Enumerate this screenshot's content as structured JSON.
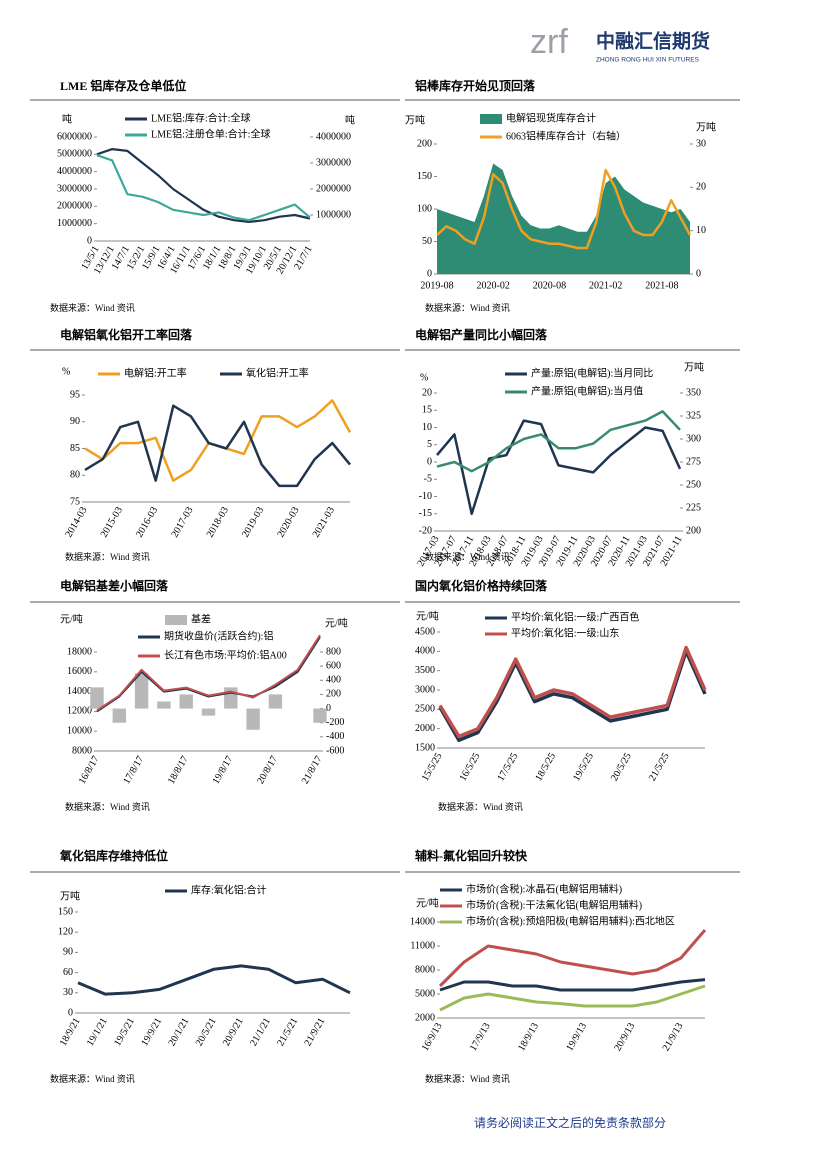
{
  "header": {
    "logo": "zrf",
    "name": "中融汇信期货",
    "name_en": "ZHONG RONG HUI XIN FUTURES"
  },
  "footer": "请务必阅读正文之后的免责条款部分",
  "chart_data": [
    {
      "type": "line",
      "title": "LME 铝库存及仓单低位",
      "source": "数据来源：Wind 资讯",
      "ylabel": "吨",
      "y2label": "吨",
      "categories": [
        "13/5/1",
        "13/12/1",
        "14/7/1",
        "15/2/1",
        "15/9/1",
        "16/4/1",
        "16/11/1",
        "17/6/1",
        "18/1/1",
        "18/8/1",
        "19/3/1",
        "19/10/1",
        "20/5/1",
        "20/12/1",
        "21/7/1"
      ],
      "series": [
        {
          "name": "LME铝:库存:合计:全球",
          "color": "#1f3550",
          "values": [
            5000000,
            5300000,
            5200000,
            4500000,
            3800000,
            3000000,
            2400000,
            1800000,
            1400000,
            1200000,
            1100000,
            1200000,
            1400000,
            1500000,
            1300000
          ]
        },
        {
          "name": "LME铝:注册仓单:合计:全球",
          "color": "#3ea89a",
          "axis": "y2",
          "values": [
            3300000,
            3100000,
            1800000,
            1700000,
            1500000,
            1200000,
            1100000,
            1000000,
            1100000,
            900000,
            800000,
            1000000,
            1200000,
            1400000,
            900000
          ]
        }
      ],
      "ylim": [
        0,
        6000000
      ],
      "yticks": [
        0,
        1000000,
        2000000,
        3000000,
        4000000,
        5000000,
        6000000
      ],
      "y2lim": [
        0,
        4000000
      ],
      "y2ticks": [
        1000000,
        2000000,
        3000000,
        4000000
      ]
    },
    {
      "type": "line",
      "title": "铝棒库存开始见顶回落",
      "source": "数据来源：Wind 资讯",
      "ylabel": "万吨",
      "y2label": "万吨",
      "categories": [
        "2019-08",
        null,
        null,
        null,
        null,
        null,
        "2020-02",
        null,
        null,
        null,
        null,
        null,
        "2020-08",
        null,
        null,
        null,
        null,
        null,
        "2021-02",
        null,
        null,
        null,
        null,
        null,
        "2021-08",
        null,
        null,
        null
      ],
      "series": [
        {
          "name": "电解铝现货库存合计",
          "type": "area",
          "color": "#2e8b74",
          "values": [
            100,
            95,
            90,
            85,
            80,
            120,
            170,
            160,
            120,
            90,
            75,
            70,
            70,
            75,
            70,
            65,
            65,
            90,
            140,
            150,
            130,
            120,
            110,
            105,
            100,
            95,
            100,
            80
          ]
        },
        {
          "name": "6063铝棒库存合计（右轴）",
          "color": "#f0a020",
          "axis": "y2",
          "values": [
            9,
            11,
            10,
            8,
            7,
            13,
            23,
            21,
            15,
            10,
            8,
            7.5,
            7,
            7,
            6.5,
            6,
            6,
            12,
            24,
            20,
            14,
            10,
            9,
            9,
            12,
            17,
            13,
            9
          ]
        }
      ],
      "ylim": [
        0,
        200
      ],
      "yticks": [
        0,
        50,
        100,
        150,
        200
      ],
      "y2lim": [
        0,
        30
      ],
      "y2ticks": [
        0,
        10,
        20,
        30
      ]
    },
    {
      "type": "line",
      "title": "电解铝氧化铝开工率回落",
      "source": "数据来源：Wind 资讯",
      "ylabel": "%",
      "categories": [
        "2014-03",
        null,
        "2015-03",
        null,
        "2016-03",
        null,
        "2017-03",
        null,
        "2018-03",
        null,
        "2019-03",
        null,
        "2020-03",
        null,
        "2021-03",
        null
      ],
      "series": [
        {
          "name": "电解铝:开工率",
          "color": "#f0a020",
          "values": [
            85,
            83,
            86,
            86,
            87,
            79,
            81,
            86,
            85,
            84,
            91,
            91,
            89,
            91,
            94,
            88
          ]
        },
        {
          "name": "氧化铝:开工率",
          "color": "#1f3550",
          "values": [
            81,
            83,
            89,
            90,
            79,
            93,
            91,
            86,
            85,
            90,
            82,
            78,
            78,
            83,
            86,
            82
          ]
        }
      ],
      "ylim": [
        75,
        95
      ],
      "yticks": [
        75,
        80,
        85,
        90,
        95
      ]
    },
    {
      "type": "line",
      "title": "电解铝产量同比小幅回落",
      "source": "数据来源：Wind 资讯",
      "ylabel": "%",
      "y2label": "万吨",
      "categories": [
        "2017-03",
        "2017-07",
        "2017-11",
        "2018-03",
        "2018-07",
        "2018-11",
        "2019-03",
        "2019-07",
        "2019-11",
        "2020-03",
        "2020-07",
        "2020-11",
        "2021-03",
        "2021-07",
        "2021-11"
      ],
      "series": [
        {
          "name": "产量:原铝(电解铝):当月同比",
          "color": "#1f3550",
          "values": [
            2,
            8,
            -15,
            1,
            2,
            12,
            11,
            -1,
            -2,
            -3,
            2,
            6,
            10,
            9,
            -2
          ]
        },
        {
          "name": "产量:原铝(电解铝):当月值",
          "color": "#3a8a6e",
          "axis": "y2",
          "values": [
            270,
            275,
            265,
            275,
            290,
            300,
            305,
            290,
            290,
            295,
            310,
            315,
            320,
            330,
            310
          ]
        }
      ],
      "ylim": [
        -20,
        20
      ],
      "yticks": [
        -20,
        -15,
        -10,
        -5,
        0,
        5,
        10,
        15,
        20
      ],
      "y2lim": [
        200,
        350
      ],
      "y2ticks": [
        200,
        225,
        250,
        275,
        300,
        325,
        350
      ]
    },
    {
      "type": "line",
      "title": "电解铝基差小幅回落",
      "source": "数据来源：Wind 资讯",
      "ylabel": "元/吨",
      "y2label": "元/吨",
      "categories": [
        "16/8/17",
        null,
        "17/8/17",
        null,
        "18/8/17",
        null,
        "19/8/17",
        null,
        "20/8/17",
        null,
        "21/8/17"
      ],
      "series": [
        {
          "name": "基差",
          "type": "bar",
          "color": "#b8b8b8",
          "axis": "y2",
          "values": [
            300,
            -200,
            500,
            100,
            200,
            -100,
            300,
            -300,
            200,
            0,
            -200
          ]
        },
        {
          "name": "期货收盘价(活跃合约):铝",
          "color": "#1f3550",
          "values": [
            12000,
            13500,
            16000,
            14000,
            14300,
            13500,
            13900,
            13500,
            14500,
            16000,
            19500
          ]
        },
        {
          "name": "长江有色市场:平均价:铝A00",
          "color": "#c0504d",
          "values": [
            12100,
            13600,
            16200,
            14100,
            14400,
            13600,
            14000,
            13400,
            14700,
            16200,
            19700
          ]
        }
      ],
      "ylim": [
        8000,
        18000
      ],
      "yticks": [
        8000,
        10000,
        12000,
        14000,
        16000,
        18000
      ],
      "y2lim": [
        -600,
        800
      ],
      "y2ticks": [
        -600,
        -400,
        -200,
        0,
        200,
        400,
        600,
        800
      ]
    },
    {
      "type": "line",
      "title": "国内氧化铝价格持续回落",
      "source": "数据来源：Wind 资讯",
      "ylabel": "元/吨",
      "categories": [
        "15/5/25",
        null,
        "16/5/25",
        null,
        "17/5/25",
        null,
        "18/5/25",
        null,
        "19/5/25",
        null,
        "20/5/25",
        null,
        "21/5/25",
        null,
        null
      ],
      "series": [
        {
          "name": "平均价:氧化铝:一级:广西百色",
          "color": "#1f3550",
          "values": [
            2550,
            1700,
            1900,
            2700,
            3700,
            2700,
            2900,
            2800,
            2500,
            2200,
            2300,
            2400,
            2500,
            4000,
            2900
          ]
        },
        {
          "name": "平均价:氧化铝:一级:山东",
          "color": "#c0504d",
          "values": [
            2600,
            1800,
            2000,
            2800,
            3800,
            2800,
            3000,
            2900,
            2600,
            2300,
            2400,
            2500,
            2600,
            4100,
            3000
          ]
        }
      ],
      "ylim": [
        1500,
        4500
      ],
      "yticks": [
        1500,
        2000,
        2500,
        3000,
        3500,
        4000,
        4500
      ]
    },
    {
      "type": "line",
      "title": "氧化铝库存维持低位",
      "source": "数据来源：Wind 资讯",
      "ylabel": "万吨",
      "categories": [
        "18/9/21",
        "19/1/21",
        "19/5/21",
        "19/9/21",
        "20/1/21",
        "20/5/21",
        "20/9/21",
        "21/1/21",
        "21/5/21",
        "21/9/21",
        null
      ],
      "series": [
        {
          "name": "库存:氧化铝:合计",
          "color": "#1f3550",
          "values": [
            45,
            28,
            30,
            35,
            50,
            65,
            70,
            65,
            45,
            50,
            30
          ]
        }
      ],
      "ylim": [
        0,
        150
      ],
      "yticks": [
        0,
        30,
        60,
        90,
        120,
        150
      ]
    },
    {
      "type": "line",
      "title": "辅料-氟化铝回升较快",
      "source": "数据来源：Wind 资讯",
      "ylabel": "元/吨",
      "categories": [
        "16/9/13",
        null,
        "17/9/13",
        null,
        "18/9/13",
        null,
        "19/9/13",
        null,
        "20/9/13",
        null,
        "21/9/13",
        null
      ],
      "series": [
        {
          "name": "市场价(含税):冰晶石(电解铝用辅料)",
          "color": "#1f3550",
          "values": [
            5500,
            6500,
            6500,
            6000,
            6000,
            5500,
            5500,
            5500,
            5500,
            6000,
            6500,
            6800
          ]
        },
        {
          "name": "市场价(含税):干法氟化铝(电解铝用辅料)",
          "color": "#c0504d",
          "values": [
            6000,
            9000,
            11000,
            10500,
            10000,
            9000,
            8500,
            8000,
            7500,
            8000,
            9500,
            13000
          ]
        },
        {
          "name": "市场价(含税):预焙阳极(电解铝用辅料):西北地区",
          "color": "#9bbb59",
          "values": [
            3000,
            4500,
            5000,
            4500,
            4000,
            3800,
            3500,
            3500,
            3500,
            4000,
            5000,
            6000
          ]
        }
      ],
      "ylim": [
        2000,
        14000
      ],
      "yticks": [
        2000,
        5000,
        8000,
        11000,
        14000
      ]
    }
  ]
}
